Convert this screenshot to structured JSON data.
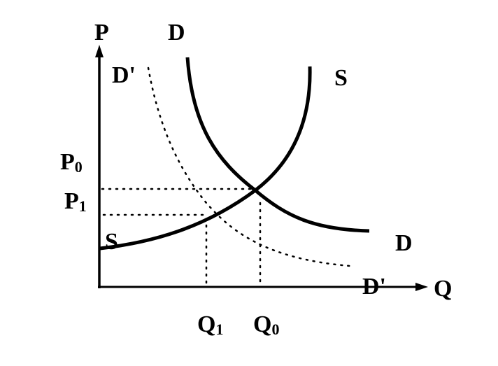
{
  "diagram": {
    "axis_labels": {
      "y": "P",
      "x": "Q"
    },
    "curves": {
      "demand": {
        "label": "D"
      },
      "demand_shifted": {
        "label": "D'"
      },
      "supply": {
        "label": "S"
      }
    },
    "price_labels": {
      "p0": "P",
      "p0_sub": "0",
      "p1": "P",
      "p1_sub": "1"
    },
    "quantity_labels": {
      "q1": "Q",
      "q1_sub": "1",
      "q0": "Q",
      "q0_sub": "0"
    },
    "colors": {
      "ink": "#000000",
      "background": "#ffffff"
    }
  }
}
